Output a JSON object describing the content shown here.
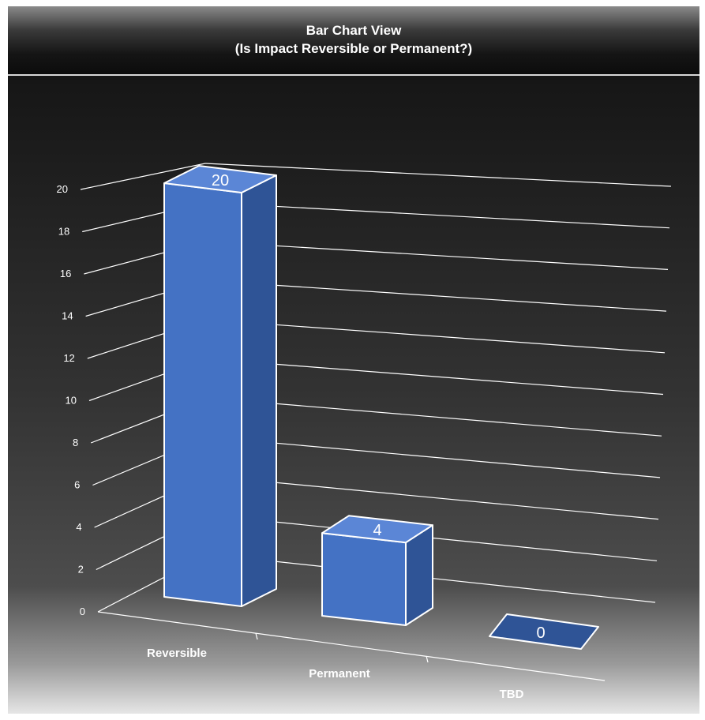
{
  "chart_data": {
    "type": "bar",
    "title": "Bar Chart View",
    "subtitle": "(Is Impact Reversible or Permanent?)",
    "categories": [
      "Reversible",
      "Permanent",
      "TBD"
    ],
    "values": [
      20,
      4,
      0
    ],
    "data_labels": [
      "20",
      "4",
      "0"
    ],
    "yticks": [
      "0",
      "2",
      "4",
      "6",
      "8",
      "10",
      "12",
      "14",
      "16",
      "18",
      "20"
    ],
    "ylim": [
      0,
      20
    ],
    "xlabel": "",
    "ylabel": "",
    "grid": true,
    "legend": "none",
    "style": "3d-column",
    "colors": {
      "bar_front": "#4472C4",
      "bar_side": "#2F5496",
      "bar_top": "#5B86D6",
      "bar_edge": "#FFFFFF",
      "gridline": "#FFFFFF",
      "text": "#FFFFFF"
    }
  }
}
